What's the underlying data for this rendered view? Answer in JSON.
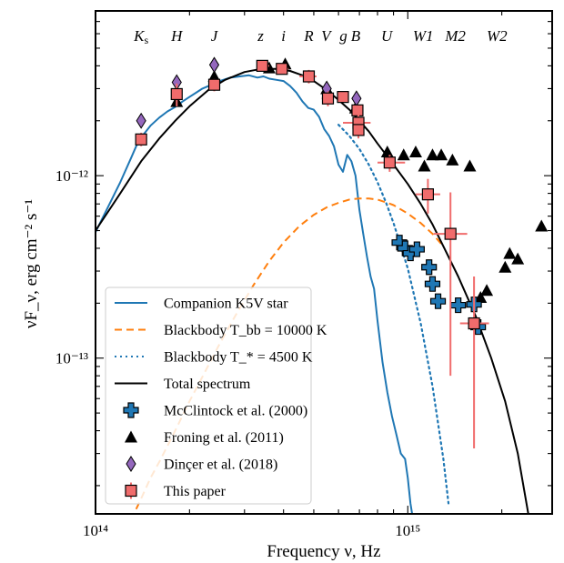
{
  "chart_data": {
    "type": "scatter",
    "xscale": "log",
    "yscale": "log",
    "xlim": [
      100000000000000.0,
      2900000000000000.0
    ],
    "ylim": [
      1.4e-14,
      8e-12
    ],
    "xlabel": "Frequency ν, Hz",
    "ylabel": "νF_ν, erg cm⁻² s⁻¹",
    "x_ticks": [
      {
        "value": 100000000000000.0,
        "label": "10¹⁴"
      },
      {
        "value": 1000000000000000.0,
        "label": "10¹⁵"
      }
    ],
    "y_ticks": [
      {
        "value": 1e-13,
        "label": "10⁻¹³"
      },
      {
        "value": 1e-12,
        "label": "10⁻¹²"
      }
    ],
    "legend_position": "bottom-left",
    "band_labels": [
      {
        "label": "Ks",
        "nu": 140000000000000.0
      },
      {
        "label": "H",
        "nu": 182000000000000.0
      },
      {
        "label": "J",
        "nu": 240000000000000.0
      },
      {
        "label": "z",
        "nu": 338000000000000.0
      },
      {
        "label": "i",
        "nu": 400000000000000.0
      },
      {
        "label": "R",
        "nu": 482000000000000.0
      },
      {
        "label": "V",
        "nu": 547000000000000.0
      },
      {
        "label": "g",
        "nu": 622000000000000.0
      },
      {
        "label": "B",
        "nu": 681000000000000.0
      },
      {
        "label": "U",
        "nu": 856000000000000.0
      },
      {
        "label": "W1",
        "nu": 1120000000000000.0
      },
      {
        "label": "M2",
        "nu": 1420000000000000.0
      },
      {
        "label": "W2",
        "nu": 1930000000000000.0
      }
    ],
    "series": [
      {
        "name": "Companion K5V star",
        "kind": "line",
        "color": "#1f77b4",
        "style": "solid",
        "x": [
          100000000000000.0,
          110000000000000.0,
          120000000000000.0,
          130000000000000.0,
          135000000000000.0,
          140000000000000.0,
          150000000000000.0,
          160000000000000.0,
          170000000000000.0,
          180000000000000.0,
          190000000000000.0,
          200000000000000.0,
          210000000000000.0,
          220000000000000.0,
          230000000000000.0,
          240000000000000.0,
          250000000000000.0,
          270000000000000.0,
          290000000000000.0,
          310000000000000.0,
          330000000000000.0,
          345000000000000.0,
          360000000000000.0,
          380000000000000.0,
          400000000000000.0,
          420000000000000.0,
          440000000000000.0,
          460000000000000.0,
          480000000000000.0,
          500000000000000.0,
          520000000000000.0,
          540000000000000.0,
          560000000000000.0,
          580000000000000.0,
          600000000000000.0,
          620000000000000.0,
          640000000000000.0,
          660000000000000.0,
          680000000000000.0,
          700000000000000.0,
          720000000000000.0,
          740000000000000.0,
          760000000000000.0,
          780000000000000.0,
          800000000000000.0,
          830000000000000.0,
          860000000000000.0,
          890000000000000.0,
          920000000000000.0,
          950000000000000.0,
          980000000000000.0,
          1000000000000000.0,
          1020000000000000.0,
          1040000000000000.0
        ],
        "y": [
          4.9e-13,
          6.8e-13,
          9.2e-13,
          1.25e-12,
          1.45e-12,
          1.62e-12,
          1.88e-12,
          2.08e-12,
          2.25e-12,
          2.38e-12,
          2.55e-12,
          2.7e-12,
          2.85e-12,
          3e-12,
          3.1e-12,
          3.2e-12,
          3.3e-12,
          3.45e-12,
          3.5e-12,
          3.55e-12,
          3.45e-12,
          3.5e-12,
          3.4e-12,
          3.35e-12,
          3.3e-12,
          3.1e-12,
          2.85e-12,
          2.55e-12,
          2.35e-12,
          2.3e-12,
          2.1e-12,
          1.8e-12,
          1.65e-12,
          1.45e-12,
          1.15e-12,
          1.05e-12,
          1.3e-12,
          1.2e-12,
          1e-12,
          6.5e-13,
          4.8e-13,
          3.6e-13,
          2.8e-13,
          2.4e-13,
          1.6e-13,
          9.5e-14,
          6.5e-14,
          4.8e-14,
          3.8e-14,
          3e-14,
          2.8e-14,
          2.2e-14,
          1.6e-14,
          1.3e-14
        ]
      },
      {
        "name": "Blackbody T_bb = 10000 K",
        "kind": "line",
        "color": "#ff7f0e",
        "style": "dashed",
        "x": [
          130000000000000.0,
          140000000000000.0,
          150000000000000.0,
          160000000000000.0,
          170000000000000.0,
          180000000000000.0,
          200000000000000.0,
          220000000000000.0,
          250000000000000.0,
          280000000000000.0,
          320000000000000.0,
          360000000000000.0,
          400000000000000.0,
          450000000000000.0,
          500000000000000.0,
          550000000000000.0,
          600000000000000.0,
          650000000000000.0,
          700000000000000.0,
          750000000000000.0,
          800000000000000.0,
          850000000000000.0,
          900000000000000.0,
          1000000000000000.0,
          1100000000000000.0,
          1200000000000000.0,
          1300000000000000.0
        ],
        "y": [
          1.3e-14,
          1.7e-14,
          2.2e-14,
          2.7e-14,
          3.3e-14,
          4e-14,
          5.8e-14,
          7.9e-14,
          1.2e-13,
          1.7e-13,
          2.5e-13,
          3.4e-13,
          4.3e-13,
          5.3e-13,
          6.1e-13,
          6.7e-13,
          7.1e-13,
          7.4e-13,
          7.5e-13,
          7.5e-13,
          7.4e-13,
          7.15e-13,
          6.9e-13,
          6.2e-13,
          5.5e-13,
          4.8e-13,
          4.1e-13
        ]
      },
      {
        "name": "Blackbody T_* = 4500 K",
        "kind": "line",
        "color": "#1f77b4",
        "style": "dotted",
        "x": [
          600000000000000.0,
          650000000000000.0,
          700000000000000.0,
          750000000000000.0,
          800000000000000.0,
          850000000000000.0,
          900000000000000.0,
          1000000000000000.0,
          1100000000000000.0,
          1200000000000000.0,
          1300000000000000.0,
          1350000000000000.0
        ],
        "y": [
          1.9e-12,
          1.65e-12,
          1.4e-12,
          1.15e-12,
          9.2e-13,
          7.2e-13,
          5.5e-13,
          3.1e-13,
          1.55e-13,
          7e-14,
          2.8e-14,
          1.6e-14
        ]
      },
      {
        "name": "Total spectrum",
        "kind": "line",
        "color": "#000000",
        "style": "solid",
        "x": [
          100000000000000.0,
          120000000000000.0,
          140000000000000.0,
          160000000000000.0,
          180000000000000.0,
          200000000000000.0,
          230000000000000.0,
          260000000000000.0,
          300000000000000.0,
          340000000000000.0,
          380000000000000.0,
          420000000000000.0,
          460000000000000.0,
          500000000000000.0,
          550000000000000.0,
          600000000000000.0,
          650000000000000.0,
          700000000000000.0,
          750000000000000.0,
          800000000000000.0,
          900000000000000.0,
          1000000000000000.0,
          1100000000000000.0,
          1200000000000000.0,
          1300000000000000.0,
          1450000000000000.0,
          1650000000000000.0,
          1850000000000000.0,
          2050000000000000.0,
          2250000000000000.0,
          2450000000000000.0
        ],
        "y": [
          5e-13,
          8e-13,
          1.2e-12,
          1.6e-12,
          2e-12,
          2.4e-12,
          2.95e-12,
          3.35e-12,
          3.7e-12,
          3.85e-12,
          3.85e-12,
          3.75e-12,
          3.55e-12,
          3.3e-12,
          2.95e-12,
          2.6e-12,
          2.3e-12,
          2e-12,
          1.75e-12,
          1.5e-12,
          1.15e-12,
          9e-13,
          7e-13,
          5.4e-13,
          4.1e-13,
          2.8e-13,
          1.7e-13,
          1e-13,
          5.8e-14,
          3e-14,
          1.3e-14
        ]
      },
      {
        "name": "McClintock et al. (2000)",
        "kind": "marker",
        "marker": "plus",
        "color": "#1f77b4",
        "points": [
          {
            "x": 940000000000000.0,
            "y": 4.3e-13
          },
          {
            "x": 980000000000000.0,
            "y": 4e-13
          },
          {
            "x": 1020000000000000.0,
            "y": 3.75e-13
          },
          {
            "x": 1070000000000000.0,
            "y": 3.95e-13
          },
          {
            "x": 1170000000000000.0,
            "y": 3.15e-13
          },
          {
            "x": 1200000000000000.0,
            "y": 2.55e-13
          },
          {
            "x": 1250000000000000.0,
            "y": 2.05e-13
          },
          {
            "x": 1450000000000000.0,
            "y": 1.95e-13
          },
          {
            "x": 1630000000000000.0,
            "y": 1.97e-13
          },
          {
            "x": 1680000000000000.0,
            "y": 1.48e-13
          }
        ]
      },
      {
        "name": "Froning et al. (2011)",
        "kind": "marker",
        "marker": "triangle",
        "color": "#000000",
        "points": [
          {
            "x": 182000000000000.0,
            "y": 2.55e-12
          },
          {
            "x": 240000000000000.0,
            "y": 3.5e-12
          },
          {
            "x": 360000000000000.0,
            "y": 3.9e-12
          },
          {
            "x": 405000000000000.0,
            "y": 4.1e-12
          },
          {
            "x": 550000000000000.0,
            "y": 3e-12
          },
          {
            "x": 680000000000000.0,
            "y": 2.35e-12
          },
          {
            "x": 860000000000000.0,
            "y": 1.35e-12
          },
          {
            "x": 970000000000000.0,
            "y": 1.3e-12
          },
          {
            "x": 1060000000000000.0,
            "y": 1.35e-12
          },
          {
            "x": 1130000000000000.0,
            "y": 1.13e-12
          },
          {
            "x": 1200000000000000.0,
            "y": 1.3e-12
          },
          {
            "x": 1280000000000000.0,
            "y": 1.3e-12
          },
          {
            "x": 1390000000000000.0,
            "y": 1.22e-12
          },
          {
            "x": 1580000000000000.0,
            "y": 1.13e-12
          },
          {
            "x": 1710000000000000.0,
            "y": 2.15e-13
          },
          {
            "x": 1790000000000000.0,
            "y": 2.35e-13
          },
          {
            "x": 2050000000000000.0,
            "y": 3.15e-13
          },
          {
            "x": 2120000000000000.0,
            "y": 3.75e-13
          },
          {
            "x": 2250000000000000.0,
            "y": 3.5e-13
          },
          {
            "x": 2680000000000000.0,
            "y": 5.3e-13
          }
        ]
      },
      {
        "name": "Dinçer et al. (2018)",
        "kind": "marker",
        "marker": "diamond",
        "color": "#9467bd",
        "points": [
          {
            "x": 140000000000000.0,
            "y": 2e-12
          },
          {
            "x": 182000000000000.0,
            "y": 3.25e-12
          },
          {
            "x": 240000000000000.0,
            "y": 4.05e-12
          },
          {
            "x": 550000000000000.0,
            "y": 3e-12
          },
          {
            "x": 685000000000000.0,
            "y": 2.65e-12
          }
        ]
      },
      {
        "name": "This paper",
        "kind": "marker",
        "marker": "square",
        "color": "#f06c6c",
        "points": [
          {
            "x": 140000000000000.0,
            "y": 1.58e-12,
            "ylo": 1.45e-12,
            "yhi": 1.72e-12
          },
          {
            "x": 182000000000000.0,
            "y": 2.8e-12,
            "ylo": 2.4e-12,
            "yhi": 3.2e-12
          },
          {
            "x": 240000000000000.0,
            "y": 3.15e-12,
            "ylo": 2.9e-12,
            "yhi": 3.4e-12
          },
          {
            "x": 342000000000000.0,
            "y": 4e-12,
            "xlo": 330000000000000.0,
            "xhi": 360000000000000.0
          },
          {
            "x": 395000000000000.0,
            "y": 3.85e-12,
            "xlo": 380000000000000.0,
            "xhi": 415000000000000.0
          },
          {
            "x": 482000000000000.0,
            "y": 3.5e-12,
            "xlo": 450000000000000.0,
            "xhi": 510000000000000.0,
            "ylo": 3.2e-12,
            "yhi": 3.8e-12
          },
          {
            "x": 555000000000000.0,
            "y": 2.65e-12,
            "xlo": 530000000000000.0,
            "xhi": 580000000000000.0,
            "ylo": 2.4e-12,
            "yhi": 2.9e-12
          },
          {
            "x": 620000000000000.0,
            "y": 2.7e-12
          },
          {
            "x": 690000000000000.0,
            "y": 2.28e-12
          },
          {
            "x": 695000000000000.0,
            "y": 1.95e-12,
            "xlo": 620000000000000.0,
            "xhi": 760000000000000.0,
            "ylo": 1.7e-12,
            "yhi": 2.15e-12
          },
          {
            "x": 695000000000000.0,
            "y": 1.78e-12,
            "ylo": 1.6e-12,
            "yhi": 1.95e-12
          },
          {
            "x": 875000000000000.0,
            "y": 1.18e-12,
            "xlo": 800000000000000.0,
            "xhi": 980000000000000.0,
            "ylo": 1.05e-12,
            "yhi": 1.3e-12
          },
          {
            "x": 1160000000000000.0,
            "y": 7.9e-13,
            "xlo": 1060000000000000.0,
            "xhi": 1270000000000000.0,
            "ylo": 6.2e-13,
            "yhi": 9.6e-13
          },
          {
            "x": 1370000000000000.0,
            "y": 4.8e-13,
            "xlo": 1210000000000000.0,
            "xhi": 1550000000000000.0,
            "ylo": 8e-14,
            "yhi": 8.1e-13
          },
          {
            "x": 1630000000000000.0,
            "y": 1.55e-13,
            "xlo": 1470000000000000.0,
            "xhi": 1820000000000000.0,
            "ylo": 3.2e-14,
            "yhi": 2.8e-13
          }
        ]
      }
    ]
  }
}
